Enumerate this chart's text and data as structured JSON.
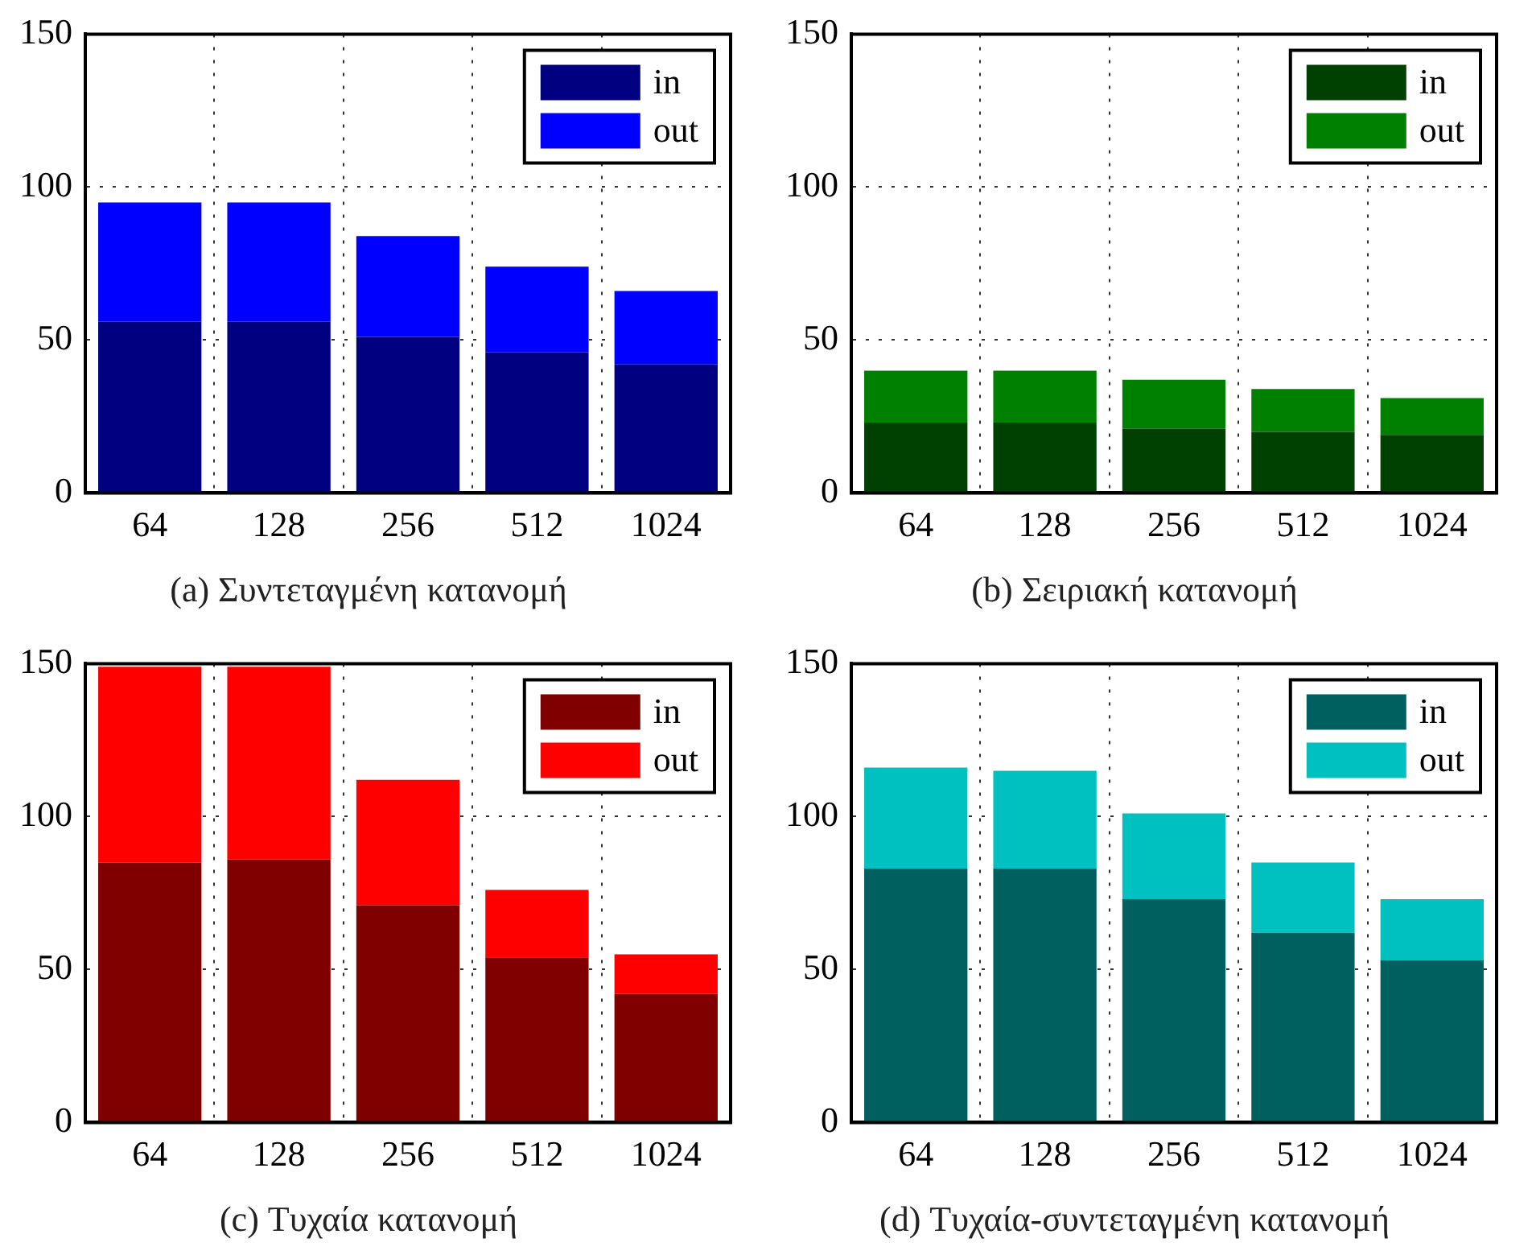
{
  "chart_data": [
    {
      "type": "bar",
      "title": "(a) Συντεταγμένη κατανομή",
      "categories": [
        "64",
        "128",
        "256",
        "512",
        "1024"
      ],
      "stacked": true,
      "ylim": [
        0,
        150
      ],
      "yticks": [
        0,
        50,
        100,
        150
      ],
      "grid": true,
      "legend": "top right",
      "series": [
        {
          "name": "in",
          "color": "#000080",
          "values": [
            56,
            56,
            51,
            46,
            42
          ]
        },
        {
          "name": "out",
          "color": "#0000ff",
          "values": [
            39,
            39,
            33,
            28,
            24
          ]
        }
      ]
    },
    {
      "type": "bar",
      "title": "(b) Σειριακή κατανομή",
      "categories": [
        "64",
        "128",
        "256",
        "512",
        "1024"
      ],
      "stacked": true,
      "ylim": [
        0,
        150
      ],
      "yticks": [
        0,
        50,
        100,
        150
      ],
      "grid": true,
      "legend": "top right",
      "series": [
        {
          "name": "in",
          "color": "#004000",
          "values": [
            23,
            23,
            21,
            20,
            19
          ]
        },
        {
          "name": "out",
          "color": "#008000",
          "values": [
            17,
            17,
            16,
            14,
            12
          ]
        }
      ]
    },
    {
      "type": "bar",
      "title": "(c) Τυχαία κατανομή",
      "categories": [
        "64",
        "128",
        "256",
        "512",
        "1024"
      ],
      "stacked": true,
      "ylim": [
        0,
        150
      ],
      "yticks": [
        0,
        50,
        100,
        150
      ],
      "grid": true,
      "legend": "top right",
      "series": [
        {
          "name": "in",
          "color": "#800000",
          "values": [
            85,
            86,
            71,
            54,
            42
          ]
        },
        {
          "name": "out",
          "color": "#ff0000",
          "values": [
            64,
            63,
            41,
            22,
            13
          ]
        }
      ]
    },
    {
      "type": "bar",
      "title": "(d) Τυχαία-συντεταγμένη κατανομή",
      "categories": [
        "64",
        "128",
        "256",
        "512",
        "1024"
      ],
      "stacked": true,
      "ylim": [
        0,
        150
      ],
      "yticks": [
        0,
        50,
        100,
        150
      ],
      "grid": true,
      "legend": "top right",
      "series": [
        {
          "name": "in",
          "color": "#006060",
          "values": [
            83,
            83,
            73,
            62,
            53
          ]
        },
        {
          "name": "out",
          "color": "#00c0c0",
          "values": [
            33,
            32,
            28,
            23,
            20
          ]
        }
      ]
    }
  ]
}
